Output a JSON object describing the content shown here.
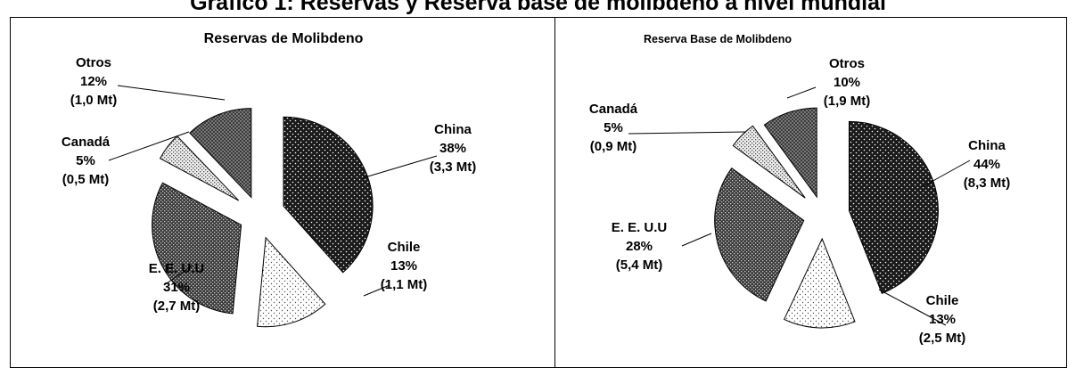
{
  "figure_title": "Gráfico 1: Reservas y Reserva base de molibdeno a nivel mundial",
  "chart_data": [
    {
      "type": "pie",
      "title": "Reservas de Molibdeno",
      "slices": [
        {
          "name": "China",
          "pct_label": "38%",
          "qty_label": "(3,3 Mt)",
          "value": 38,
          "fill": "fill-china"
        },
        {
          "name": "Chile",
          "pct_label": "13%",
          "qty_label": "(1,1 Mt)",
          "value": 13,
          "fill": "fill-chile"
        },
        {
          "name": "E. E. U.U",
          "pct_label": "31%",
          "qty_label": "(2,7 Mt)",
          "value": 31,
          "fill": "fill-usa"
        },
        {
          "name": "Canadá",
          "pct_label": "5%",
          "qty_label": "(0,5 Mt)",
          "value": 5,
          "fill": "fill-canada"
        },
        {
          "name": "Otros",
          "pct_label": "12%",
          "qty_label": "(1,0 Mt)",
          "value": 12,
          "fill": "fill-otros"
        }
      ]
    },
    {
      "type": "pie",
      "title": "Reserva Base de Molibdeno",
      "slices": [
        {
          "name": "China",
          "pct_label": "44%",
          "qty_label": "(8,3 Mt)",
          "value": 44,
          "fill": "fill-china"
        },
        {
          "name": "Chile",
          "pct_label": "13%",
          "qty_label": "(2,5 Mt)",
          "value": 13,
          "fill": "fill-chile"
        },
        {
          "name": "E. E. U.U",
          "pct_label": "28%",
          "qty_label": "(5,4 Mt)",
          "value": 28,
          "fill": "fill-usa"
        },
        {
          "name": "Canadá",
          "pct_label": "5%",
          "qty_label": "(0,9 Mt)",
          "value": 5,
          "fill": "fill-canada"
        },
        {
          "name": "Otros",
          "pct_label": "10%",
          "qty_label": "(1,9 Mt)",
          "value": 10,
          "fill": "fill-otros"
        }
      ]
    }
  ]
}
